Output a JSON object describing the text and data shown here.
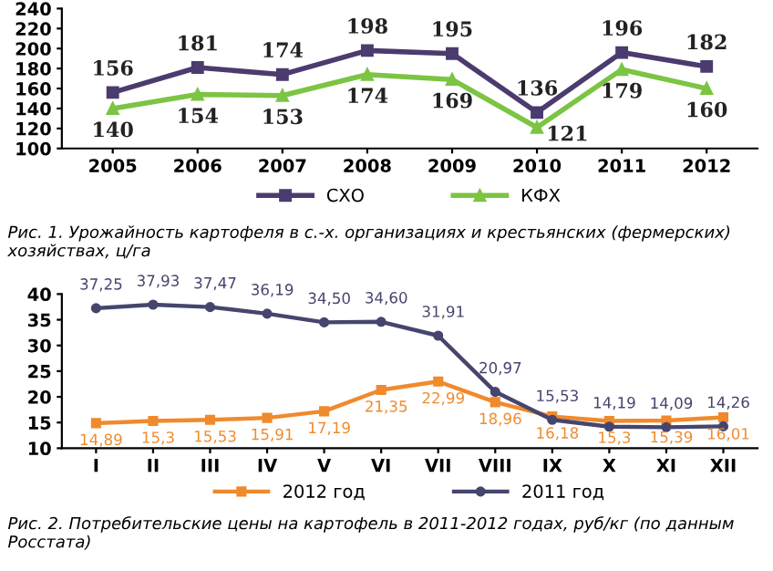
{
  "chart_data": [
    {
      "type": "line",
      "categories": [
        "2005",
        "2006",
        "2007",
        "2008",
        "2009",
        "2010",
        "2011",
        "2012"
      ],
      "series": [
        {
          "name": "СХО",
          "color": "#4b3b6e",
          "marker": "square",
          "values": [
            156,
            181,
            174,
            198,
            195,
            136,
            196,
            182
          ]
        },
        {
          "name": "КФХ",
          "color": "#7cc443",
          "marker": "triangle",
          "values": [
            140,
            154,
            153,
            174,
            169,
            121,
            179,
            160
          ]
        }
      ],
      "ylim": [
        100,
        240
      ],
      "yticks": [
        100,
        120,
        140,
        160,
        180,
        200,
        220,
        240
      ],
      "grid": false,
      "legend": "bottom",
      "data_labels": true,
      "annotations": [
        "Рис. 1. Урожайность картофеля в с.-х. организациях и крестьянских (фермерских) хозяйствах, ц/га"
      ]
    },
    {
      "type": "line",
      "categories": [
        "I",
        "II",
        "III",
        "IV",
        "V",
        "VI",
        "VII",
        "VIII",
        "IX",
        "X",
        "XI",
        "XII"
      ],
      "series": [
        {
          "name": "2012 год",
          "color": "#f08a2c",
          "marker": "square",
          "values": [
            14.89,
            15.3,
            15.53,
            15.91,
            17.19,
            21.35,
            22.99,
            18.96,
            16.18,
            15.3,
            15.39,
            16.01
          ],
          "value_labels": [
            "14,89",
            "15,3",
            "15,53",
            "15,91",
            "17,19",
            "21,35",
            "22,99",
            "18,96",
            "16,18",
            "15,3",
            "15,39",
            "16,01"
          ]
        },
        {
          "name": "2011 год",
          "color": "#46456e",
          "marker": "circle",
          "values": [
            37.25,
            37.93,
            37.47,
            36.19,
            34.5,
            34.6,
            31.91,
            20.97,
            15.53,
            14.19,
            14.09,
            14.26
          ],
          "value_labels": [
            "37,25",
            "37,93",
            "37,47",
            "36,19",
            "34,50",
            "34,60",
            "31,91",
            "20,97",
            "15,53",
            "14,19",
            "14,09",
            "14,26"
          ]
        }
      ],
      "ylim": [
        10,
        40
      ],
      "yticks": [
        10,
        15,
        20,
        25,
        30,
        35,
        40
      ],
      "grid": false,
      "legend": "bottom",
      "annotations": [
        "Рис. 2. Потребительские цены на картофель в 2011-2012 годах, руб/кг (по данным Росстата)"
      ]
    }
  ]
}
